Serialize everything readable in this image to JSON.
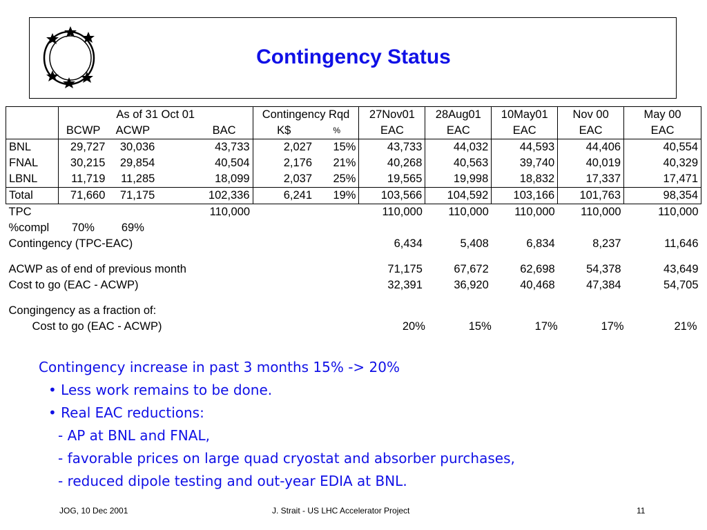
{
  "title": "Contingency Status",
  "table": {
    "header1": {
      "group": "As of 31 Oct 01",
      "contingency": "Contingency Rqd",
      "cols": [
        "27Nov01",
        "28Aug01",
        "10May01",
        "Nov 00",
        "May 00"
      ]
    },
    "header2": {
      "bcwp": "BCWP",
      "acwp": "ACWP",
      "bac": "BAC",
      "k": "K$",
      "pct": "%",
      "cols": [
        "EAC",
        "EAC",
        "EAC",
        "EAC",
        "EAC"
      ]
    },
    "rows": [
      {
        "label": "BNL",
        "bcwp": "29,727",
        "acwp": "30,036",
        "bac": "43,733",
        "k": "2,027",
        "pct": "15%",
        "eac": [
          "43,733",
          "44,032",
          "44,593",
          "44,406",
          "40,554"
        ]
      },
      {
        "label": "FNAL",
        "bcwp": "30,215",
        "acwp": "29,854",
        "bac": "40,504",
        "k": "2,176",
        "pct": "21%",
        "eac": [
          "40,268",
          "40,563",
          "39,740",
          "40,019",
          "40,329"
        ]
      },
      {
        "label": "LBNL",
        "bcwp": "11,719",
        "acwp": "11,285",
        "bac": "18,099",
        "k": "2,037",
        "pct": "25%",
        "eac": [
          "19,565",
          "19,998",
          "18,832",
          "17,337",
          "17,471"
        ]
      }
    ],
    "total": {
      "label": "Total",
      "bcwp": "71,660",
      "acwp": "71,175",
      "bac": "102,336",
      "k": "6,241",
      "pct": "19%",
      "eac": [
        "103,566",
        "104,592",
        "103,166",
        "101,763",
        "98,354"
      ]
    },
    "tpc": {
      "label": "TPC",
      "bac": "110,000",
      "eac": [
        "110,000",
        "110,000",
        "110,000",
        "110,000",
        "110,000"
      ]
    },
    "pctcompl": {
      "label": "%compl",
      "bcwp": "70%",
      "acwp": "69%"
    },
    "contingency": {
      "label": "Contingency (TPC-EAC)",
      "vals": [
        "6,434",
        "5,408",
        "6,834",
        "8,237",
        "11,646"
      ]
    },
    "acwp_prev": {
      "label": "ACWP as of end of previous month",
      "vals": [
        "71,175",
        "67,672",
        "62,698",
        "54,378",
        "43,649"
      ]
    },
    "cost_to_go": {
      "label": "Cost to go (EAC - ACWP)",
      "vals": [
        "32,391",
        "36,920",
        "40,468",
        "47,384",
        "54,705"
      ]
    },
    "fraction_heading": "Congingency as a fraction of:",
    "fraction": {
      "label": "Cost to go (EAC - ACWP)",
      "vals": [
        "20%",
        "15%",
        "17%",
        "17%",
        "21%"
      ]
    }
  },
  "notes": {
    "headline": "Contingency increase in past 3 months 15% -> 20%",
    "bullet1": "• Less work remains to be done.",
    "bullet2": "• Real EAC reductions:",
    "sub1": "- AP at BNL and FNAL,",
    "sub2": "- favorable prices on large quad cryostat and absorber purchases,",
    "sub3": "- reduced dipole testing and out-year EDIA at BNL."
  },
  "footer": {
    "left": "JOG, 10 Dec 2001",
    "center": "J. Strait - US LHC Accelerator Project",
    "page": "11"
  }
}
